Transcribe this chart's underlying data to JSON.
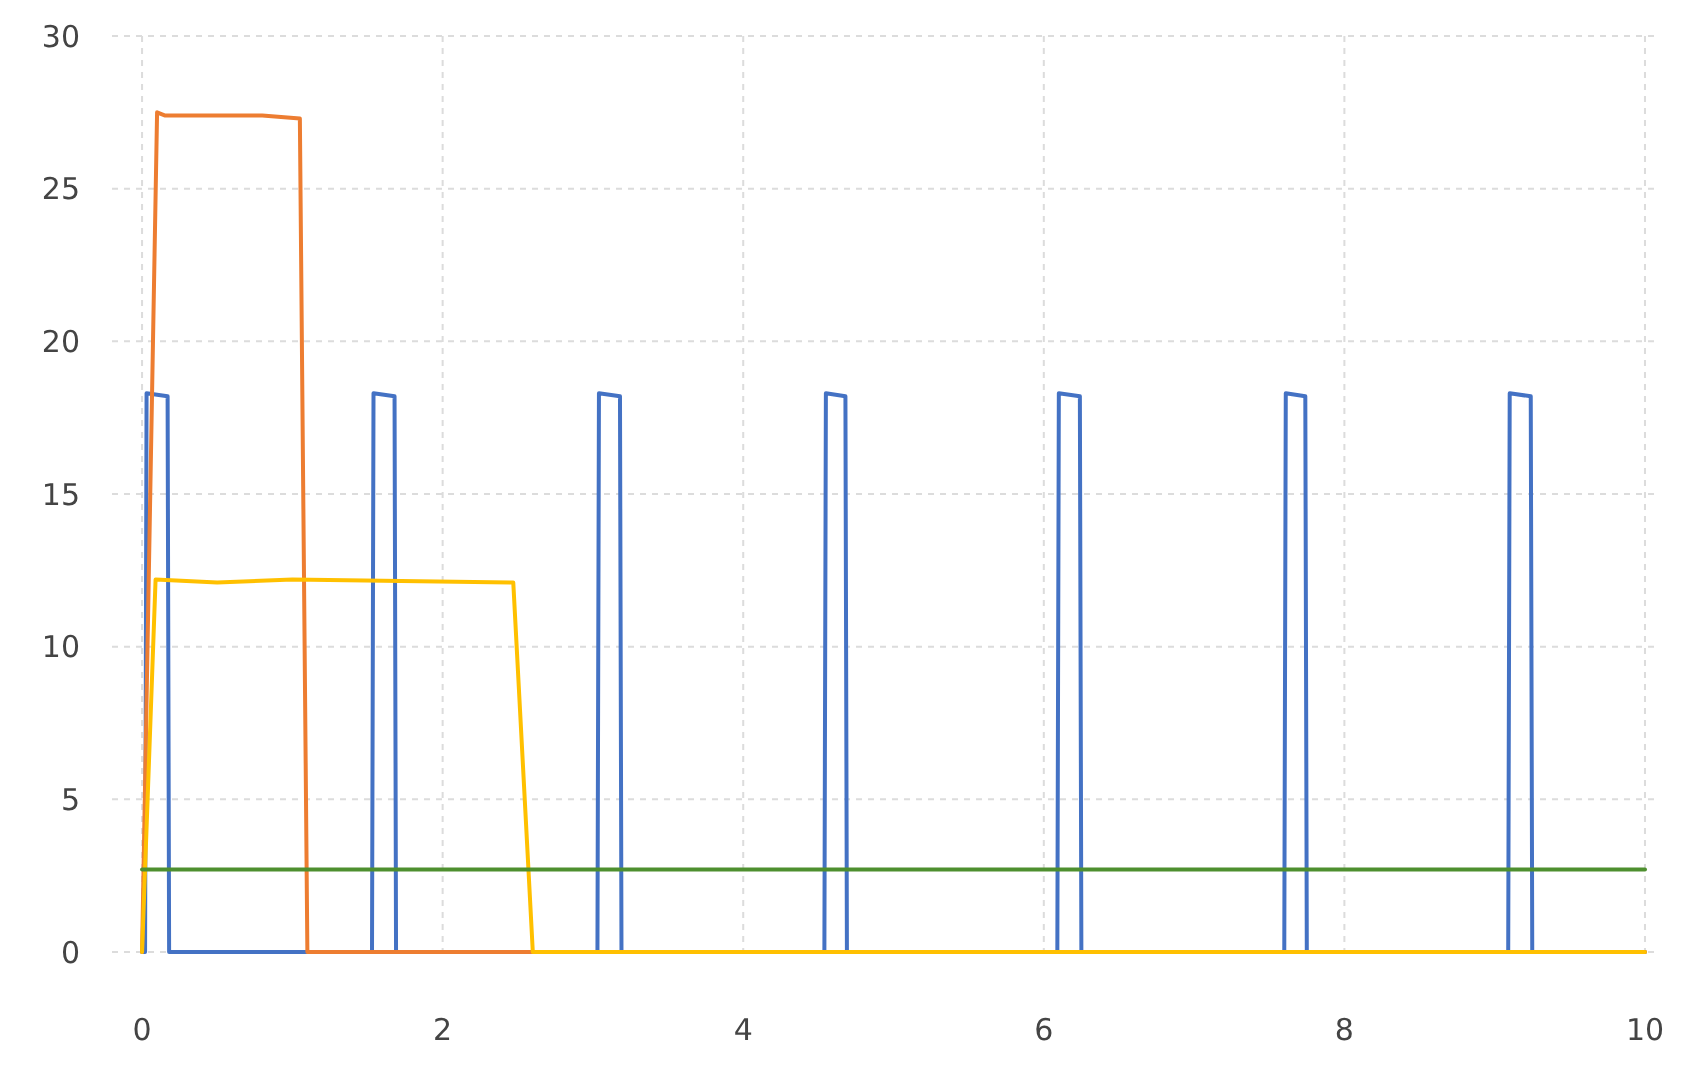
{
  "chart_data": {
    "type": "line",
    "xlim": [
      -0.2,
      10.1
    ],
    "xticks": [
      0,
      2,
      4,
      6,
      8,
      10
    ],
    "ylim": [
      0,
      30
    ],
    "yticks": [
      0,
      5,
      10,
      15,
      20,
      25,
      30
    ],
    "grid": true,
    "marker": "none",
    "line_style": "solid",
    "series": [
      {
        "color": "#4472c4",
        "x": [
          0,
          0.02,
          0.03,
          0.17,
          0.18,
          1.53,
          1.54,
          1.68,
          1.69,
          3.03,
          3.04,
          3.18,
          3.19,
          4.54,
          4.55,
          4.68,
          4.69,
          6.09,
          6.1,
          6.24,
          6.25,
          7.6,
          7.61,
          7.74,
          7.75,
          9.09,
          9.1,
          9.24,
          9.25,
          10
        ],
        "values": [
          0,
          0,
          18.3,
          18.2,
          0,
          0,
          18.3,
          18.2,
          0,
          0,
          18.3,
          18.2,
          0,
          0,
          18.3,
          18.2,
          0,
          0,
          18.3,
          18.2,
          0,
          0,
          18.3,
          18.2,
          0,
          0,
          18.3,
          18.2,
          0,
          0
        ]
      },
      {
        "color": "#ed7d31",
        "x": [
          0,
          0.1,
          0.15,
          0.8,
          1.05,
          1.1,
          10
        ],
        "values": [
          0,
          27.5,
          27.4,
          27.4,
          27.3,
          0,
          0
        ]
      },
      {
        "color": "#ffc000",
        "x": [
          0,
          0.09,
          0.5,
          1.0,
          2.47,
          2.6,
          10
        ],
        "values": [
          0,
          12.2,
          12.1,
          12.2,
          12.1,
          0,
          0
        ]
      },
      {
        "color": "#4e8f2f",
        "x": [
          0,
          10
        ],
        "values": [
          2.7,
          2.7
        ]
      }
    ]
  }
}
